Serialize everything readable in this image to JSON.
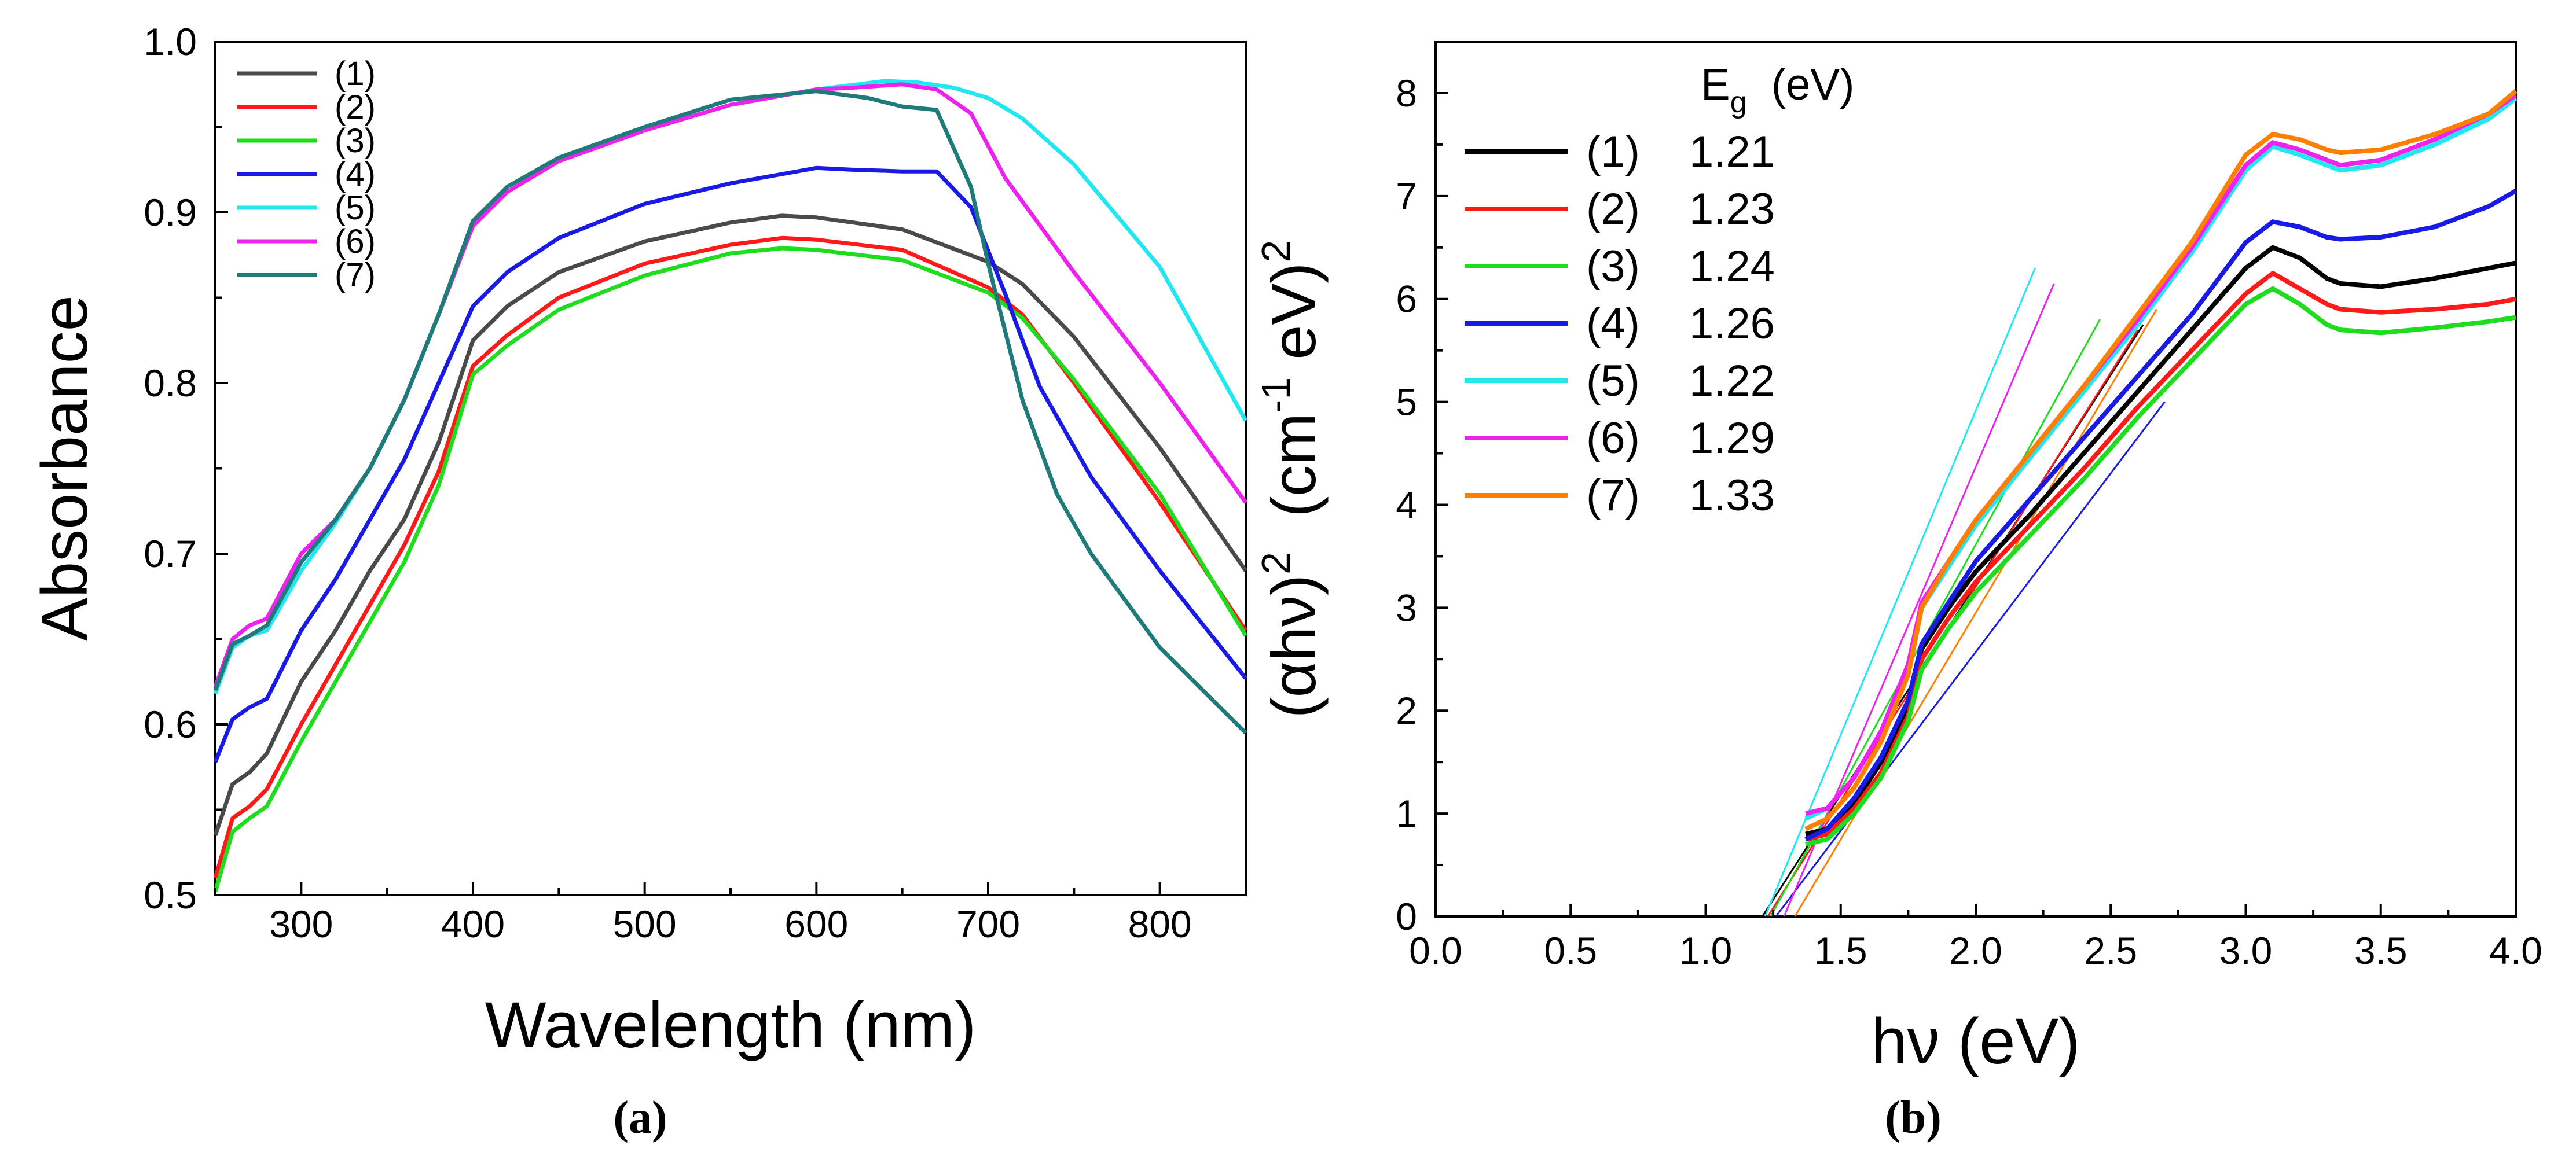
{
  "chart_data": [
    {
      "type": "line",
      "panel_label": "(a)",
      "xlabel": "Wavelength  (nm)",
      "ylabel": "Absorbance",
      "xlim": [
        250,
        850
      ],
      "ylim": [
        0.5,
        1.0
      ],
      "xticks": [
        300,
        400,
        500,
        600,
        700,
        800
      ],
      "yticks": [
        0.5,
        0.6,
        0.7,
        0.8,
        0.9,
        1.0
      ],
      "ytick_labels": [
        "0.5",
        "0.6",
        "0.7",
        "0.8",
        "0.9",
        "1.0"
      ],
      "legend_position": "top-left",
      "series": [
        {
          "name": "(1)",
          "color": "#4a4a4a",
          "x": [
            250,
            260,
            270,
            280,
            300,
            320,
            340,
            360,
            380,
            400,
            420,
            450,
            500,
            550,
            580,
            600,
            650,
            700,
            720,
            750,
            800,
            850
          ],
          "y": [
            0.535,
            0.565,
            0.572,
            0.583,
            0.625,
            0.655,
            0.69,
            0.72,
            0.765,
            0.825,
            0.845,
            0.865,
            0.883,
            0.894,
            0.898,
            0.897,
            0.89,
            0.871,
            0.858,
            0.827,
            0.762,
            0.69
          ]
        },
        {
          "name": "(2)",
          "color": "#ff1a1a",
          "x": [
            250,
            260,
            270,
            280,
            300,
            320,
            340,
            360,
            380,
            400,
            420,
            450,
            500,
            550,
            580,
            600,
            650,
            700,
            720,
            750,
            800,
            850
          ],
          "y": [
            0.51,
            0.545,
            0.552,
            0.562,
            0.6,
            0.635,
            0.67,
            0.705,
            0.748,
            0.81,
            0.828,
            0.85,
            0.87,
            0.881,
            0.885,
            0.884,
            0.878,
            0.856,
            0.84,
            0.8,
            0.73,
            0.655
          ]
        },
        {
          "name": "(3)",
          "color": "#1edc1e",
          "x": [
            250,
            260,
            270,
            280,
            300,
            320,
            340,
            360,
            380,
            400,
            420,
            450,
            500,
            550,
            580,
            600,
            650,
            700,
            720,
            750,
            800,
            850
          ],
          "y": [
            0.502,
            0.537,
            0.545,
            0.552,
            0.59,
            0.625,
            0.66,
            0.695,
            0.74,
            0.805,
            0.822,
            0.843,
            0.863,
            0.876,
            0.879,
            0.878,
            0.872,
            0.853,
            0.838,
            0.802,
            0.735,
            0.652
          ]
        },
        {
          "name": "(4)",
          "color": "#1a1ae6",
          "x": [
            250,
            260,
            270,
            280,
            300,
            320,
            340,
            360,
            380,
            400,
            420,
            450,
            500,
            550,
            600,
            620,
            650,
            670,
            690,
            710,
            730,
            760,
            800,
            850
          ],
          "y": [
            0.578,
            0.603,
            0.61,
            0.615,
            0.655,
            0.685,
            0.72,
            0.755,
            0.8,
            0.845,
            0.865,
            0.885,
            0.905,
            0.917,
            0.926,
            0.925,
            0.924,
            0.924,
            0.903,
            0.852,
            0.798,
            0.745,
            0.69,
            0.627
          ]
        },
        {
          "name": "(5)",
          "color": "#22e6f0",
          "x": [
            250,
            260,
            270,
            280,
            300,
            320,
            340,
            360,
            380,
            400,
            420,
            450,
            500,
            550,
            600,
            640,
            660,
            680,
            700,
            720,
            750,
            800,
            850
          ],
          "y": [
            0.618,
            0.645,
            0.652,
            0.655,
            0.69,
            0.718,
            0.75,
            0.79,
            0.84,
            0.892,
            0.912,
            0.93,
            0.948,
            0.963,
            0.972,
            0.977,
            0.976,
            0.973,
            0.967,
            0.955,
            0.928,
            0.868,
            0.778
          ]
        },
        {
          "name": "(6)",
          "color": "#ee22ee",
          "x": [
            250,
            260,
            270,
            280,
            300,
            320,
            340,
            360,
            380,
            400,
            420,
            450,
            500,
            550,
            600,
            620,
            650,
            670,
            690,
            710,
            750,
            800,
            850
          ],
          "y": [
            0.622,
            0.65,
            0.658,
            0.662,
            0.7,
            0.72,
            0.75,
            0.79,
            0.84,
            0.892,
            0.912,
            0.93,
            0.948,
            0.963,
            0.972,
            0.973,
            0.975,
            0.972,
            0.958,
            0.92,
            0.865,
            0.8,
            0.73
          ]
        },
        {
          "name": "(7)",
          "color": "#1f7a7a",
          "x": [
            250,
            260,
            270,
            280,
            300,
            320,
            340,
            360,
            380,
            400,
            420,
            450,
            500,
            550,
            600,
            630,
            650,
            670,
            690,
            700,
            720,
            740,
            760,
            800,
            850
          ],
          "y": [
            0.62,
            0.647,
            0.652,
            0.658,
            0.695,
            0.72,
            0.75,
            0.79,
            0.84,
            0.895,
            0.915,
            0.932,
            0.95,
            0.966,
            0.971,
            0.967,
            0.962,
            0.96,
            0.915,
            0.87,
            0.79,
            0.735,
            0.7,
            0.645,
            0.595
          ]
        }
      ]
    },
    {
      "type": "line",
      "panel_label": "(b)",
      "xlabel": "hν  (eV)",
      "ylabel_main": "(αhν)",
      "ylabel_sup1": "2",
      "ylabel_unit_a": "  (cm",
      "ylabel_sup2": "-1",
      "ylabel_unit_b": " eV)",
      "ylabel_sup3": "2",
      "xlim": [
        0.0,
        4.0
      ],
      "ylim": [
        0,
        8.5
      ],
      "xticks": [
        0.0,
        0.5,
        1.0,
        1.5,
        2.0,
        2.5,
        3.0,
        3.5,
        4.0
      ],
      "xtick_labels": [
        "0.0",
        "0.5",
        "1.0",
        "1.5",
        "2.0",
        "2.5",
        "3.0",
        "3.5",
        "4.0"
      ],
      "yticks": [
        0,
        1,
        2,
        3,
        4,
        5,
        6,
        7,
        8
      ],
      "legend_position": "top-left",
      "legend_header_main": "E",
      "legend_header_sub": "g",
      "legend_header_unit": "  (eV)",
      "series": [
        {
          "name": "(1)",
          "eg": "1.21",
          "color": "#000000",
          "x": [
            1.37,
            1.45,
            1.55,
            1.65,
            1.75,
            1.8,
            1.9,
            2.0,
            2.2,
            2.4,
            2.6,
            2.8,
            3.0,
            3.1,
            3.2,
            3.3,
            3.35,
            3.5,
            3.7,
            3.9,
            4.0
          ],
          "y": [
            0.8,
            0.85,
            1.1,
            1.5,
            2.0,
            2.6,
            3.0,
            3.35,
            3.9,
            4.5,
            5.1,
            5.7,
            6.3,
            6.5,
            6.4,
            6.2,
            6.15,
            6.12,
            6.2,
            6.3,
            6.35
          ],
          "fit": [
            [
              1.21,
              0
            ],
            [
              2.62,
              5.75
            ]
          ]
        },
        {
          "name": "(2)",
          "eg": "1.23",
          "color": "#ff1a1a",
          "x": [
            1.37,
            1.45,
            1.55,
            1.65,
            1.75,
            1.8,
            1.9,
            2.0,
            2.2,
            2.4,
            2.6,
            2.8,
            3.0,
            3.1,
            3.2,
            3.3,
            3.35,
            3.5,
            3.7,
            3.9,
            4.0
          ],
          "y": [
            0.75,
            0.8,
            1.05,
            1.4,
            1.95,
            2.5,
            2.9,
            3.25,
            3.8,
            4.35,
            4.95,
            5.5,
            6.05,
            6.25,
            6.1,
            5.95,
            5.9,
            5.87,
            5.9,
            5.95,
            6.0
          ],
          "fit": [
            [
              1.23,
              0
            ],
            [
              2.6,
              5.7
            ]
          ]
        },
        {
          "name": "(3)",
          "eg": "1.24",
          "color": "#1edc1e",
          "x": [
            1.37,
            1.45,
            1.55,
            1.65,
            1.75,
            1.8,
            1.9,
            2.0,
            2.2,
            2.4,
            2.6,
            2.8,
            3.0,
            3.1,
            3.2,
            3.3,
            3.35,
            3.5,
            3.7,
            3.9,
            4.0
          ],
          "y": [
            0.7,
            0.75,
            1.0,
            1.35,
            1.9,
            2.4,
            2.8,
            3.15,
            3.7,
            4.25,
            4.85,
            5.4,
            5.95,
            6.1,
            5.95,
            5.75,
            5.7,
            5.67,
            5.72,
            5.78,
            5.82
          ],
          "fit": [
            [
              1.24,
              0
            ],
            [
              2.46,
              5.8
            ]
          ]
        },
        {
          "name": "(4)",
          "eg": "1.26",
          "color": "#1a1ae6",
          "x": [
            1.37,
            1.45,
            1.55,
            1.65,
            1.75,
            1.8,
            1.9,
            2.0,
            2.2,
            2.4,
            2.6,
            2.8,
            3.0,
            3.1,
            3.2,
            3.3,
            3.35,
            3.5,
            3.7,
            3.9,
            4.0
          ],
          "y": [
            0.75,
            0.85,
            1.15,
            1.55,
            2.1,
            2.65,
            3.05,
            3.45,
            4.05,
            4.65,
            5.25,
            5.85,
            6.55,
            6.75,
            6.7,
            6.6,
            6.58,
            6.6,
            6.7,
            6.9,
            7.05
          ],
          "fit": [
            [
              1.26,
              0
            ],
            [
              2.7,
              5.0
            ]
          ]
        },
        {
          "name": "(5)",
          "eg": "1.22",
          "color": "#22e6f0",
          "x": [
            1.37,
            1.45,
            1.55,
            1.65,
            1.75,
            1.8,
            1.9,
            2.0,
            2.2,
            2.4,
            2.6,
            2.8,
            3.0,
            3.1,
            3.2,
            3.3,
            3.35,
            3.5,
            3.7,
            3.9,
            4.0
          ],
          "y": [
            0.95,
            1.05,
            1.35,
            1.8,
            2.4,
            3.0,
            3.4,
            3.8,
            4.45,
            5.1,
            5.75,
            6.45,
            7.25,
            7.48,
            7.4,
            7.3,
            7.25,
            7.3,
            7.5,
            7.75,
            7.95
          ],
          "fit": [
            [
              1.22,
              0
            ],
            [
              2.22,
              6.3
            ]
          ]
        },
        {
          "name": "(6)",
          "eg": "1.29",
          "color": "#ee22ee",
          "x": [
            1.37,
            1.45,
            1.55,
            1.65,
            1.75,
            1.8,
            1.9,
            2.0,
            2.2,
            2.4,
            2.6,
            2.8,
            3.0,
            3.1,
            3.2,
            3.3,
            3.35,
            3.5,
            3.7,
            3.9,
            4.0
          ],
          "y": [
            1.0,
            1.05,
            1.35,
            1.8,
            2.45,
            3.05,
            3.45,
            3.85,
            4.5,
            5.15,
            5.8,
            6.5,
            7.3,
            7.52,
            7.45,
            7.35,
            7.3,
            7.35,
            7.55,
            7.8,
            7.98
          ],
          "fit": [
            [
              1.29,
              0
            ],
            [
              2.29,
              6.15
            ]
          ]
        },
        {
          "name": "(7)",
          "eg": "1.33",
          "color": "#ff8000",
          "x": [
            1.37,
            1.45,
            1.55,
            1.65,
            1.75,
            1.8,
            1.9,
            2.0,
            2.2,
            2.4,
            2.6,
            2.8,
            3.0,
            3.1,
            3.2,
            3.3,
            3.35,
            3.5,
            3.7,
            3.9,
            4.0
          ],
          "y": [
            0.85,
            0.95,
            1.25,
            1.7,
            2.35,
            3.0,
            3.45,
            3.85,
            4.5,
            5.15,
            5.85,
            6.55,
            7.4,
            7.6,
            7.55,
            7.45,
            7.42,
            7.45,
            7.6,
            7.8,
            8.02
          ],
          "fit": [
            [
              1.33,
              0
            ],
            [
              2.67,
              5.9
            ]
          ]
        }
      ]
    }
  ]
}
